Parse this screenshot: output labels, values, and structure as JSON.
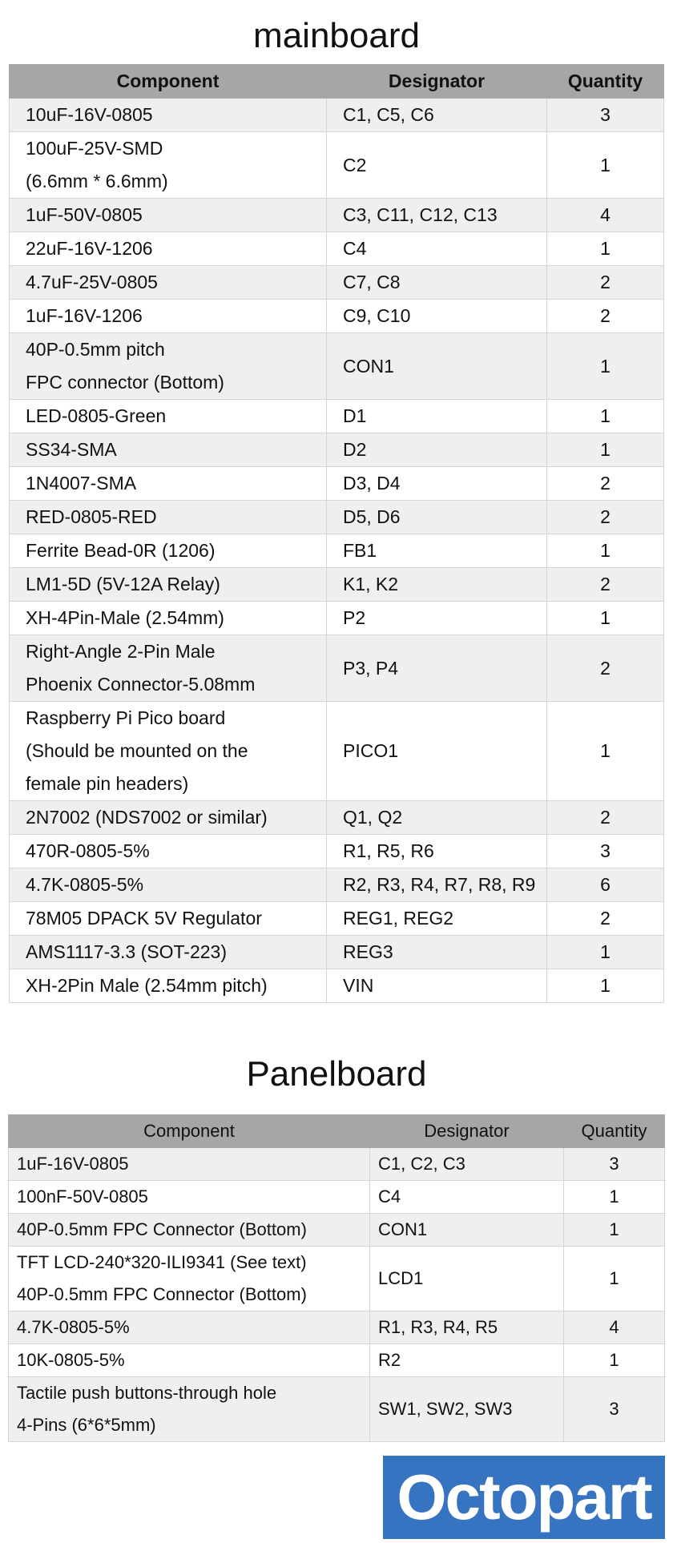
{
  "mainboard": {
    "title": "mainboard",
    "headers": [
      "Component",
      "Designator",
      "Quantity"
    ],
    "rows": [
      [
        "10uF-16V-0805",
        "C1, C5, C6",
        "3"
      ],
      [
        "100uF-25V-SMD\n(6.6mm * 6.6mm)",
        "C2",
        "1"
      ],
      [
        "1uF-50V-0805",
        "C3, C11, C12, C13",
        "4"
      ],
      [
        "22uF-16V-1206",
        "C4",
        "1"
      ],
      [
        "4.7uF-25V-0805",
        "C7, C8",
        "2"
      ],
      [
        "1uF-16V-1206",
        "C9, C10",
        "2"
      ],
      [
        "40P-0.5mm pitch\nFPC connector (Bottom)",
        "CON1",
        "1"
      ],
      [
        "LED-0805-Green",
        "D1",
        "1"
      ],
      [
        "SS34-SMA",
        "D2",
        "1"
      ],
      [
        "1N4007-SMA",
        "D3, D4",
        "2"
      ],
      [
        "RED-0805-RED",
        "D5, D6",
        "2"
      ],
      [
        "Ferrite Bead-0R (1206)",
        "FB1",
        "1"
      ],
      [
        "LM1-5D (5V-12A Relay)",
        "K1, K2",
        "2"
      ],
      [
        "XH-4Pin-Male (2.54mm)",
        "P2",
        "1"
      ],
      [
        "Right-Angle 2-Pin Male\nPhoenix Connector-5.08mm",
        "P3, P4",
        "2"
      ],
      [
        "Raspberry Pi Pico board\n(Should be mounted on the\nfemale pin headers)",
        "PICO1",
        "1"
      ],
      [
        "2N7002 (NDS7002 or similar)",
        "Q1, Q2",
        "2"
      ],
      [
        "470R-0805-5%",
        "R1, R5, R6",
        "3"
      ],
      [
        "4.7K-0805-5%",
        "R2, R3, R4, R7, R8, R9",
        "6"
      ],
      [
        "78M05 DPACK 5V Regulator",
        "REG1, REG2",
        "2"
      ],
      [
        "AMS1117-3.3 (SOT-223)",
        "REG3",
        "1"
      ],
      [
        "XH-2Pin Male (2.54mm pitch)",
        "VIN",
        "1"
      ]
    ]
  },
  "panelboard": {
    "title": "Panelboard",
    "headers": [
      "Component",
      "Designator",
      "Quantity"
    ],
    "rows": [
      [
        "1uF-16V-0805",
        "C1, C2, C3",
        "3"
      ],
      [
        "100nF-50V-0805",
        "C4",
        "1"
      ],
      [
        "40P-0.5mm FPC Connector (Bottom)",
        "CON1",
        "1"
      ],
      [
        "TFT LCD-240*320-ILI9341 (See text)\n40P-0.5mm FPC Connector (Bottom)",
        "LCD1",
        "1"
      ],
      [
        "4.7K-0805-5%",
        "R1, R3, R4, R5",
        "4"
      ],
      [
        "10K-0805-5%",
        "R2",
        "1"
      ],
      [
        "Tactile push buttons-through hole\n4-Pins (6*6*5mm)",
        "SW1, SW2, SW3",
        "3"
      ]
    ]
  },
  "logo": {
    "text": "Octopart",
    "color": "#3673c0"
  }
}
